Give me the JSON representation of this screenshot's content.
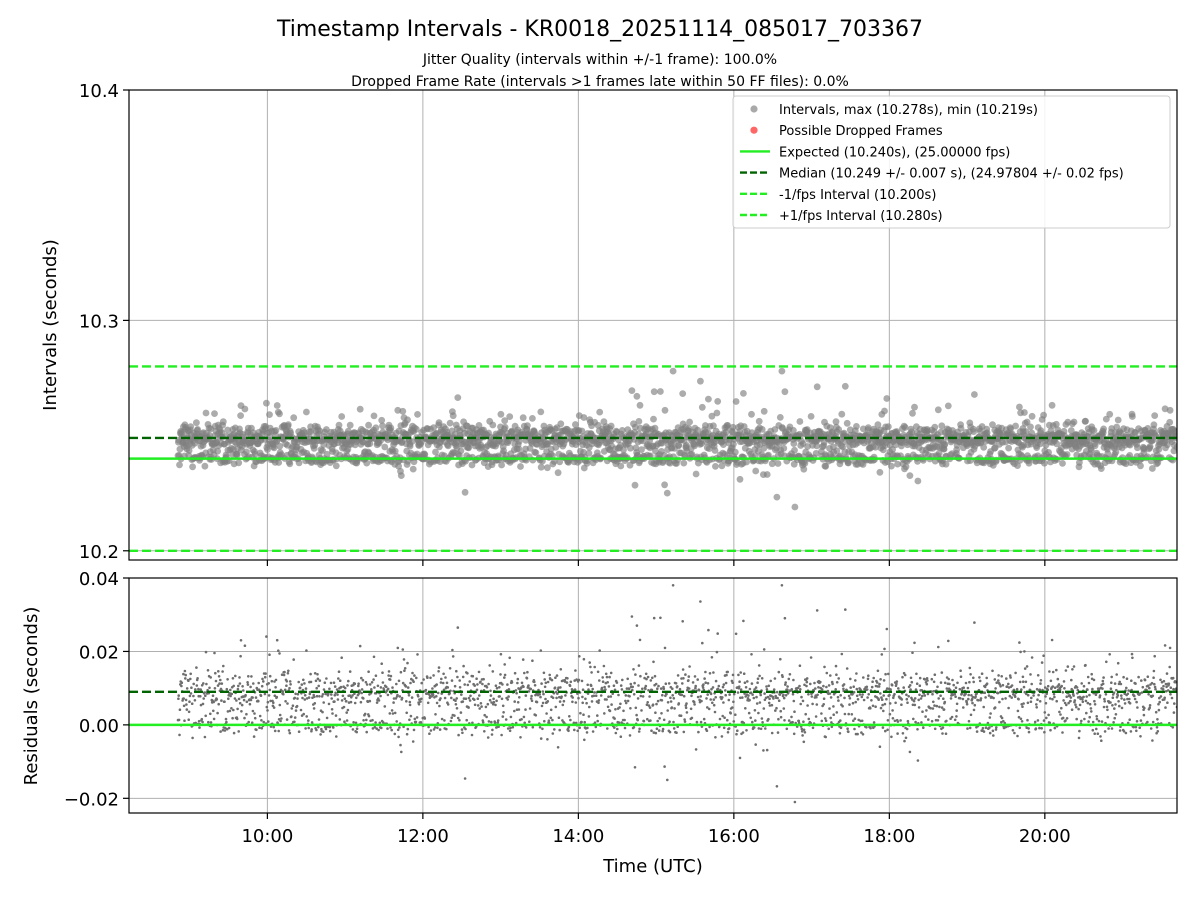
{
  "title": "Timestamp Intervals - KR0018_20251114_085017_703367",
  "subtitle_1": "Jitter Quality (intervals within +/-1 frame): 100.0%",
  "subtitle_2": "Dropped Frame Rate (intervals >1 frames late within 50 FF files): 0.0%",
  "colors": {
    "points": "#808080",
    "dropped": "#ff4444",
    "expected": "#22ee22",
    "median": "#006400",
    "interval": "#22ee22",
    "grid": "#b0b0b0"
  },
  "chart_data": [
    {
      "type": "scatter",
      "title": "Intervals",
      "xlabel": "",
      "ylabel": "Intervals (seconds)",
      "xlim_hours": [
        8.22,
        21.7
      ],
      "ylim": [
        10.196,
        10.4
      ],
      "yticks": [
        10.2,
        10.3,
        10.4
      ],
      "ytick_labels": [
        "10.2",
        "10.3",
        "10.4"
      ],
      "grid": true,
      "legend_position": "top-right",
      "legend": [
        {
          "label": "Intervals, max (10.278s), min (10.219s)",
          "kind": "marker",
          "color": "#a0a0a0"
        },
        {
          "label": "Possible Dropped Frames",
          "kind": "marker",
          "color": "#ff5555"
        },
        {
          "label": "Expected (10.240s), (25.00000 fps)",
          "kind": "solid",
          "color": "#22ee22"
        },
        {
          "label": "Median (10.249 +/- 0.007 s), (24.97804 +/- 0.02 fps)",
          "kind": "dashed",
          "color": "#006400"
        },
        {
          "label": "-1/fps Interval (10.200s)",
          "kind": "dashed",
          "color": "#22ee22"
        },
        {
          "label": "+1/fps Interval (10.280s)",
          "kind": "dashed",
          "color": "#22ee22"
        }
      ],
      "reference_lines": {
        "expected": 10.24,
        "median": 10.249,
        "lower": 10.2,
        "upper": 10.28
      },
      "series": [
        {
          "name": "Intervals",
          "x_start_hours": 8.85,
          "x_end_hours": 21.7,
          "count": 4500,
          "center": 10.249,
          "spread": 0.007,
          "max": 10.278,
          "min": 10.219
        }
      ]
    },
    {
      "type": "scatter",
      "title": "Residuals",
      "xlabel": "Time (UTC)",
      "ylabel": "Residuals (seconds)",
      "xlim_hours": [
        8.22,
        21.7
      ],
      "ylim": [
        -0.024,
        0.04
      ],
      "yticks": [
        -0.02,
        0.0,
        0.02,
        0.04
      ],
      "ytick_labels": [
        "−0.02",
        "0.00",
        "0.02",
        "0.04"
      ],
      "xticks_hours": [
        10,
        12,
        14,
        16,
        18,
        20
      ],
      "xtick_labels": [
        "10:00",
        "12:00",
        "14:00",
        "16:00",
        "18:00",
        "20:00"
      ],
      "grid": true,
      "reference_lines": {
        "zero": 0.0,
        "median": 0.009
      },
      "series": [
        {
          "name": "Residuals",
          "x_start_hours": 8.85,
          "x_end_hours": 21.7,
          "count": 4500,
          "center": 0.009,
          "spread": 0.007,
          "max": 0.038,
          "min": -0.021
        }
      ]
    }
  ]
}
